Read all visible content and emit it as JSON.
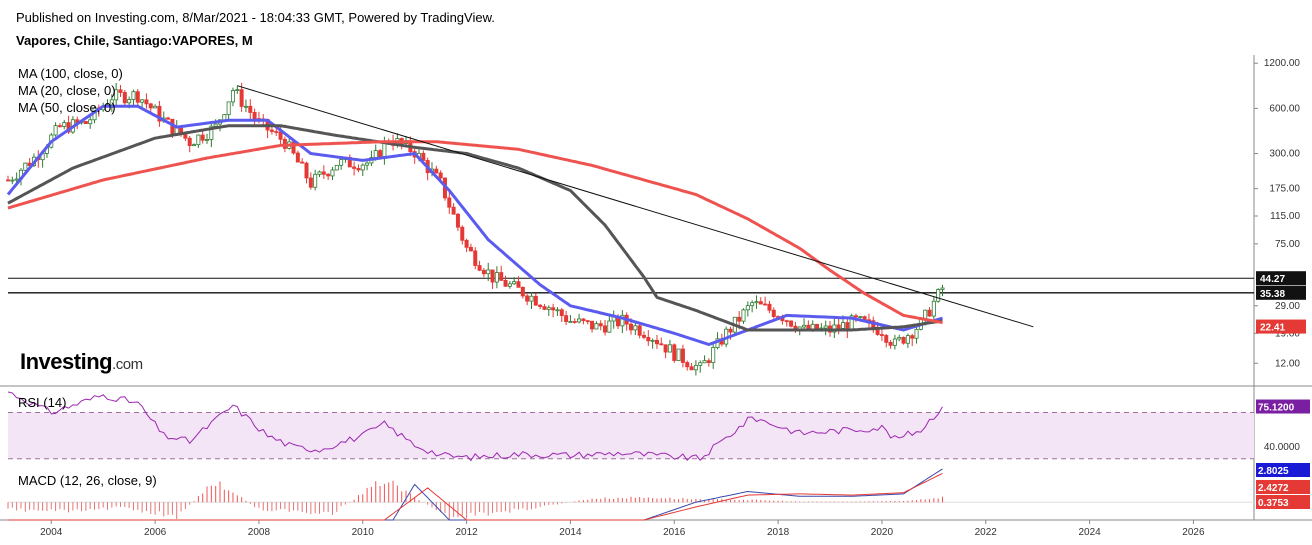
{
  "header": {
    "published": "Published on Investing.com, 8/Mar/2021 - 18:04:33 GMT, Powered by TradingView.",
    "instrument": "Vapores, Chile, Santiago:VAPORES, M"
  },
  "brand": {
    "name": "Investing",
    "suffix": ".com"
  },
  "colors": {
    "up": "#2e7d32",
    "down": "#e53935",
    "ma100": "#ef5350",
    "ma20": "#5b5bef",
    "ma50": "#555555",
    "rsi": "#9c27b0",
    "rsi_band": "#f3e5f5",
    "macd_line": "#3949ab",
    "signal_line": "#e53935",
    "price_badge": "#e53935",
    "macd_badge": "#1a1ad6"
  },
  "chart_data": [
    {
      "type": "candlestick",
      "title": "Vapores, Chile, Santiago:VAPORES, M",
      "y_scale": "log",
      "ylim": [
        9,
        1300
      ],
      "xlim": [
        "2003-03",
        "2027-03"
      ],
      "x_ticks": [
        "2004",
        "2006",
        "2008",
        "2010",
        "2012",
        "2014",
        "2016",
        "2018",
        "2020",
        "2022",
        "2024",
        "2026"
      ],
      "y_ticks": [
        "1200.00",
        "600.00",
        "300.00",
        "175.00",
        "115.00",
        "75.00",
        "29.00",
        "19.00",
        "12.00"
      ],
      "price_labels": {
        "resistance_1": "44.27",
        "resistance_2": "35.38",
        "ma_value": "22.41"
      },
      "legend": [
        "MA (100, close, 0)",
        "MA (20, close, 0)",
        "MA (50, close, 0)"
      ],
      "close_anchors": [
        {
          "date": "2003-03",
          "close": 200
        },
        {
          "date": "2003-09",
          "close": 280
        },
        {
          "date": "2004-03",
          "close": 450
        },
        {
          "date": "2004-09",
          "close": 480
        },
        {
          "date": "2005-03",
          "close": 720
        },
        {
          "date": "2005-09",
          "close": 740
        },
        {
          "date": "2006-03",
          "close": 500
        },
        {
          "date": "2006-09",
          "close": 360
        },
        {
          "date": "2007-03",
          "close": 450
        },
        {
          "date": "2007-07",
          "close": 800
        },
        {
          "date": "2008-01",
          "close": 480
        },
        {
          "date": "2008-07",
          "close": 360
        },
        {
          "date": "2009-01",
          "close": 190
        },
        {
          "date": "2009-07",
          "close": 260
        },
        {
          "date": "2010-03",
          "close": 260
        },
        {
          "date": "2010-07",
          "close": 380
        },
        {
          "date": "2011-01",
          "close": 310
        },
        {
          "date": "2011-07",
          "close": 190
        },
        {
          "date": "2012-01",
          "close": 70
        },
        {
          "date": "2012-07",
          "close": 45
        },
        {
          "date": "2013-01",
          "close": 37
        },
        {
          "date": "2013-07",
          "close": 30
        },
        {
          "date": "2014-01",
          "close": 23
        },
        {
          "date": "2014-07",
          "close": 21
        },
        {
          "date": "2015-01",
          "close": 23
        },
        {
          "date": "2015-07",
          "close": 19
        },
        {
          "date": "2016-01",
          "close": 14
        },
        {
          "date": "2016-07",
          "close": 11
        },
        {
          "date": "2017-01",
          "close": 19
        },
        {
          "date": "2017-07",
          "close": 30
        },
        {
          "date": "2018-01",
          "close": 26
        },
        {
          "date": "2018-07",
          "close": 20
        },
        {
          "date": "2019-01",
          "close": 20
        },
        {
          "date": "2019-07",
          "close": 23
        },
        {
          "date": "2020-01",
          "close": 20
        },
        {
          "date": "2020-04",
          "close": 16
        },
        {
          "date": "2020-10",
          "close": 22
        },
        {
          "date": "2021-03",
          "close": 38
        }
      ],
      "ma_series": [
        {
          "name": "MA (20, close, 0)",
          "color": "#5b5bef",
          "points": [
            [
              "2003-03",
              160
            ],
            [
              "2004-01",
              360
            ],
            [
              "2005-01",
              620
            ],
            [
              "2005-09",
              620
            ],
            [
              "2006-06",
              450
            ],
            [
              "2007-06",
              500
            ],
            [
              "2008-03",
              500
            ],
            [
              "2009-01",
              300
            ],
            [
              "2010-01",
              270
            ],
            [
              "2011-01",
              300
            ],
            [
              "2011-09",
              170
            ],
            [
              "2012-06",
              80
            ],
            [
              "2013-06",
              40
            ],
            [
              "2014-01",
              29
            ],
            [
              "2015-01",
              24
            ],
            [
              "2016-01",
              19
            ],
            [
              "2016-09",
              16
            ],
            [
              "2017-06",
              20
            ],
            [
              "2018-03",
              25
            ],
            [
              "2019-06",
              24
            ],
            [
              "2020-06",
              20
            ],
            [
              "2021-03",
              24
            ]
          ]
        },
        {
          "name": "MA (50, close, 0)",
          "color": "#555555",
          "points": [
            [
              "2003-03",
              140
            ],
            [
              "2004-06",
              240
            ],
            [
              "2006-01",
              380
            ],
            [
              "2007-06",
              460
            ],
            [
              "2008-06",
              460
            ],
            [
              "2009-06",
              400
            ],
            [
              "2011-01",
              330
            ],
            [
              "2012-01",
              300
            ],
            [
              "2013-01",
              240
            ],
            [
              "2014-01",
              170
            ],
            [
              "2014-09",
              100
            ],
            [
              "2015-06",
              45
            ],
            [
              "2015-09",
              33
            ],
            [
              "2016-06",
              27
            ],
            [
              "2017-06",
              20
            ],
            [
              "2018-06",
              20
            ],
            [
              "2019-06",
              20
            ],
            [
              "2020-06",
              21
            ],
            [
              "2021-03",
              23
            ]
          ]
        },
        {
          "name": "MA (100, close, 0)",
          "color": "#ef5350",
          "points": [
            [
              "2003-03",
              130
            ],
            [
              "2005-01",
              200
            ],
            [
              "2007-01",
              280
            ],
            [
              "2008-06",
              340
            ],
            [
              "2010-06",
              360
            ],
            [
              "2011-06",
              360
            ],
            [
              "2013-01",
              320
            ],
            [
              "2014-06",
              250
            ],
            [
              "2015-06",
              200
            ],
            [
              "2016-06",
              160
            ],
            [
              "2017-06",
              110
            ],
            [
              "2018-06",
              70
            ],
            [
              "2019-01",
              50
            ],
            [
              "2019-09",
              35
            ],
            [
              "2020-06",
              25
            ],
            [
              "2021-03",
              22.41
            ]
          ]
        }
      ],
      "trendline": {
        "start": [
          "2007-08",
          850
        ],
        "end": [
          "2022-12",
          21
        ]
      },
      "horizontal_levels": [
        44.27,
        35.38
      ]
    },
    {
      "type": "line",
      "name": "RSI (14)",
      "ylim": [
        28,
        92
      ],
      "y_ticks": [
        "40.0000"
      ],
      "band": [
        30,
        70
      ],
      "last_value": "75.1200",
      "points": [
        [
          "2003-03",
          88
        ],
        [
          "2004-01",
          70
        ],
        [
          "2005-01",
          85
        ],
        [
          "2005-09",
          78
        ],
        [
          "2006-03",
          50
        ],
        [
          "2006-09",
          45
        ],
        [
          "2007-07",
          76
        ],
        [
          "2008-03",
          50
        ],
        [
          "2008-09",
          40
        ],
        [
          "2009-03",
          38
        ],
        [
          "2010-01",
          50
        ],
        [
          "2010-06",
          60
        ],
        [
          "2011-01",
          42
        ],
        [
          "2011-07",
          33
        ],
        [
          "2012-01",
          31
        ],
        [
          "2013-01",
          34
        ],
        [
          "2014-01",
          33
        ],
        [
          "2015-01",
          35
        ],
        [
          "2016-07",
          30
        ],
        [
          "2017-07",
          66
        ],
        [
          "2018-06",
          52
        ],
        [
          "2019-06",
          55
        ],
        [
          "2020-01",
          57
        ],
        [
          "2020-04",
          47
        ],
        [
          "2020-10",
          55
        ],
        [
          "2021-03",
          75.12
        ]
      ]
    },
    {
      "type": "bar",
      "name": "MACD (12, 26, close, 9)",
      "ylim": [
        -1.5,
        3.3
      ],
      "labels": {
        "macd": "2.8025",
        "signal": "2.4272",
        "histogram": "0.3753"
      },
      "histogram_anchors": [
        [
          "2003-03",
          -0.6
        ],
        [
          "2004-06",
          -0.8
        ],
        [
          "2005-06",
          -0.4
        ],
        [
          "2006-06",
          -1.3
        ],
        [
          "2007-03",
          1.8
        ],
        [
          "2008-01",
          -0.6
        ],
        [
          "2009-06",
          -0.9
        ],
        [
          "2010-06",
          1.9
        ],
        [
          "2011-09",
          -1.3
        ],
        [
          "2012-06",
          -1.0
        ],
        [
          "2013-06",
          -0.4
        ],
        [
          "2014-06",
          0.3
        ],
        [
          "2015-06",
          0.4
        ],
        [
          "2016-06",
          0.25
        ],
        [
          "2017-06",
          0.2
        ],
        [
          "2018-06",
          0.05
        ],
        [
          "2019-06",
          0.05
        ],
        [
          "2020-06",
          0.1
        ],
        [
          "2021-03",
          0.4
        ]
      ],
      "macd_points": [
        [
          "2003-03",
          -1.5
        ],
        [
          "2004-06",
          -1.5
        ],
        [
          "2005-06",
          -1.5
        ],
        [
          "2006-06",
          -1.5
        ],
        [
          "2010-08",
          -1.5
        ],
        [
          "2011-01",
          1.5
        ],
        [
          "2011-09",
          -1.5
        ],
        [
          "2015-06",
          -1.5
        ],
        [
          "2016-06",
          0.0
        ],
        [
          "2017-06",
          0.9
        ],
        [
          "2018-06",
          0.5
        ],
        [
          "2019-06",
          0.5
        ],
        [
          "2020-06",
          0.7
        ],
        [
          "2021-03",
          2.8025
        ]
      ],
      "signal_points": [
        [
          "2003-03",
          -1.5
        ],
        [
          "2006-06",
          -1.5
        ],
        [
          "2010-06",
          -1.5
        ],
        [
          "2011-04",
          1.2
        ],
        [
          "2012-01",
          -1.5
        ],
        [
          "2015-06",
          -1.5
        ],
        [
          "2016-06",
          -0.4
        ],
        [
          "2017-06",
          0.6
        ],
        [
          "2018-06",
          0.7
        ],
        [
          "2019-06",
          0.6
        ],
        [
          "2020-06",
          0.8
        ],
        [
          "2021-03",
          2.4272
        ]
      ]
    }
  ]
}
